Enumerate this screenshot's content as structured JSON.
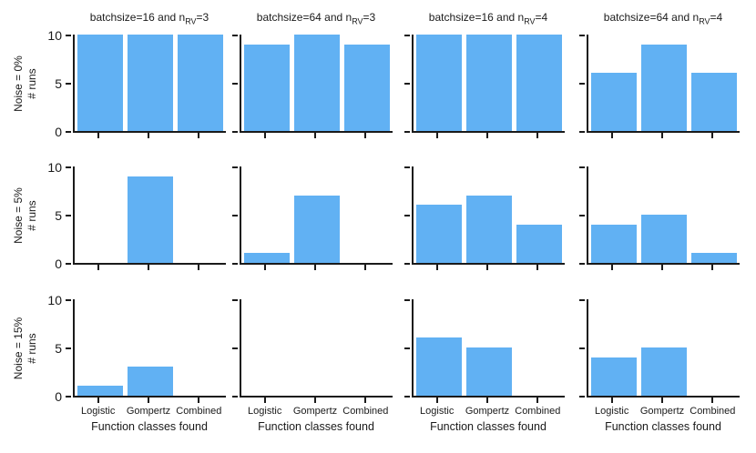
{
  "figure": {
    "background": "#ffffff",
    "axis_color": "#1a1a1a",
    "bar_color": "#61b1f3"
  },
  "chart_data": {
    "type": "bar",
    "title": "",
    "categories": [
      "Logistic",
      "Gompertz",
      "Combined"
    ],
    "xlabel": "Function classes found",
    "ylim": [
      0,
      10
    ],
    "yticks": [
      0,
      5,
      10
    ],
    "ytick_labels_top_to_bottom": [
      "10",
      "5",
      "0"
    ],
    "grid": false,
    "legend": "none",
    "columns": [
      {
        "title_pre": "batchsize=16 and n",
        "title_sub": "RV",
        "title_post": "=3"
      },
      {
        "title_pre": "batchsize=64 and n",
        "title_sub": "RV",
        "title_post": "=3"
      },
      {
        "title_pre": "batchsize=16 and n",
        "title_sub": "RV",
        "title_post": "=4"
      },
      {
        "title_pre": "batchsize=64 and n",
        "title_sub": "RV",
        "title_post": "=4"
      }
    ],
    "rows": [
      {
        "label_line1": "Noise = 0%",
        "label_line2": "# runs",
        "series": [
          {
            "name": "batchsize=16 and nRV=3",
            "values": [
              10,
              10,
              10
            ]
          },
          {
            "name": "batchsize=64 and nRV=3",
            "values": [
              9,
              10,
              9
            ]
          },
          {
            "name": "batchsize=16 and nRV=4",
            "values": [
              10,
              10,
              10
            ]
          },
          {
            "name": "batchsize=64 and nRV=4",
            "values": [
              6,
              9,
              6
            ]
          }
        ]
      },
      {
        "label_line1": "Noise = 5%",
        "label_line2": "# runs",
        "series": [
          {
            "name": "batchsize=16 and nRV=3",
            "values": [
              0,
              9,
              0
            ]
          },
          {
            "name": "batchsize=64 and nRV=3",
            "values": [
              1,
              7,
              0
            ]
          },
          {
            "name": "batchsize=16 and nRV=4",
            "values": [
              6,
              7,
              4
            ]
          },
          {
            "name": "batchsize=64 and nRV=4",
            "values": [
              4,
              5,
              1
            ]
          }
        ]
      },
      {
        "label_line1": "Noise = 15%",
        "label_line2": "# runs",
        "series": [
          {
            "name": "batchsize=16 and nRV=3",
            "values": [
              1,
              3,
              0
            ]
          },
          {
            "name": "batchsize=64 and nRV=3",
            "values": [
              0,
              0,
              0
            ]
          },
          {
            "name": "batchsize=16 and nRV=4",
            "values": [
              6,
              5,
              0
            ]
          },
          {
            "name": "batchsize=64 and nRV=4",
            "values": [
              4,
              5,
              0
            ]
          }
        ]
      }
    ]
  }
}
